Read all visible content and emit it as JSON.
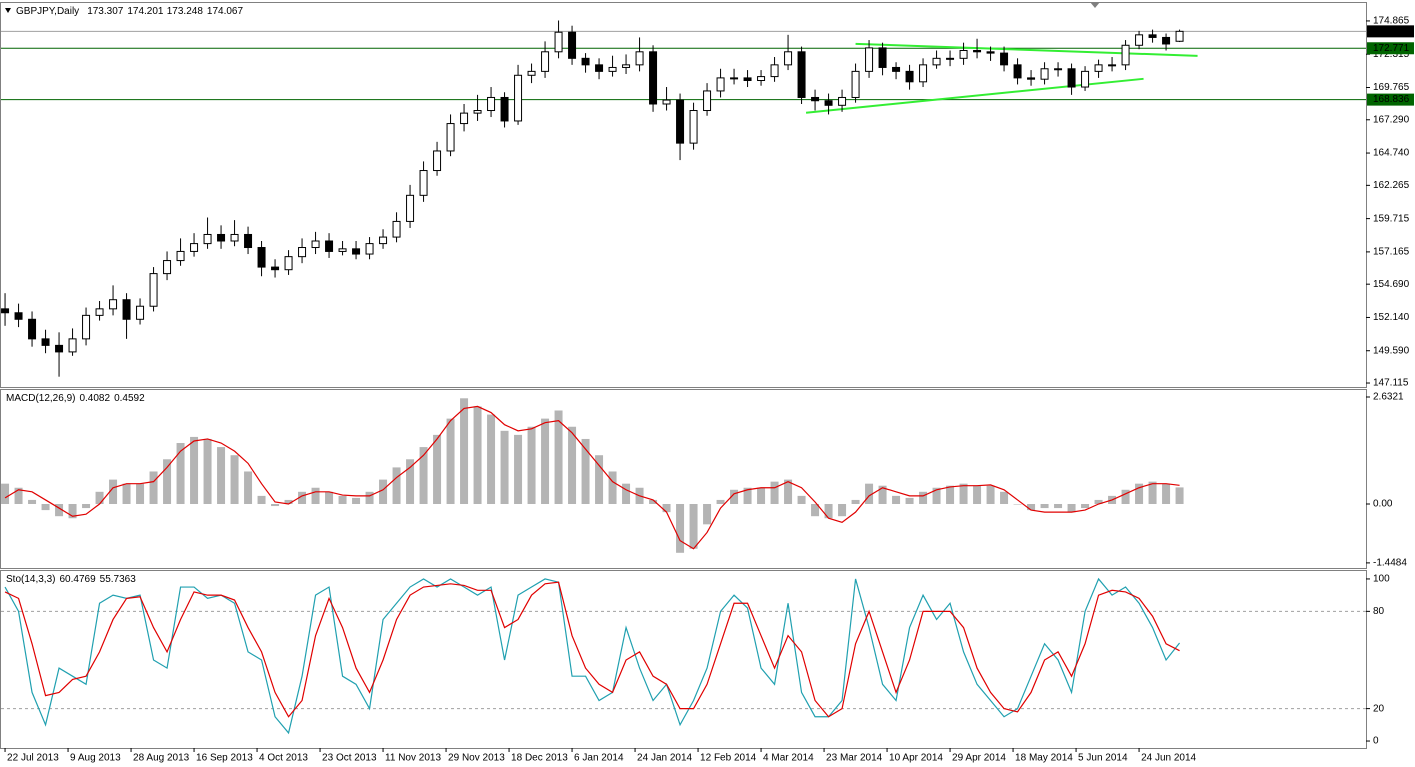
{
  "chart_data": [
    {
      "type": "candlestick",
      "title": "GBPJPY,Daily",
      "x": [
        0,
        3,
        6,
        9,
        12,
        15,
        18,
        21,
        24,
        27,
        30,
        33,
        36,
        39,
        42,
        45,
        48,
        51,
        54,
        57,
        60,
        63,
        66,
        69,
        72,
        75,
        78,
        81,
        84,
        87,
        90,
        93,
        96,
        99,
        102,
        105,
        108,
        111,
        114,
        117,
        120,
        123,
        126,
        129,
        132,
        135,
        138,
        141,
        144,
        147,
        150,
        153,
        156,
        159,
        162,
        165,
        168,
        171,
        174,
        177,
        180,
        183,
        186,
        189,
        192,
        195,
        198,
        201,
        204,
        207,
        210,
        213,
        216,
        219,
        222,
        225,
        228,
        231,
        234,
        237,
        240,
        243,
        246,
        249,
        252,
        255,
        258,
        261
      ],
      "open": [
        152.8,
        152.5,
        152,
        150.5,
        150,
        149.5,
        150.5,
        152.3,
        152.8,
        153.5,
        152,
        153,
        155.5,
        156.5,
        157.2,
        157.8,
        158.5,
        158,
        158.5,
        157.5,
        156,
        155.8,
        156.8,
        157.5,
        158,
        157.2,
        157.4,
        157,
        157.8,
        158.3,
        159.5,
        161.5,
        163.4,
        164.9,
        167,
        167.8,
        168,
        169,
        167.2,
        170.7,
        171,
        172.5,
        174,
        172,
        171.5,
        171,
        171.3,
        171.5,
        172.5,
        168.5,
        168.8,
        165.5,
        168,
        169.5,
        170.5,
        170.5,
        170.3,
        170.6,
        171.5,
        172.5,
        169,
        168.75,
        168.4,
        169,
        171,
        172.8,
        171.3,
        171,
        170.2,
        171.5,
        172,
        172,
        172.6,
        172.5,
        172.4,
        171.5,
        170.5,
        170.4,
        171.2,
        171.2,
        169.8,
        171,
        171.5,
        171.5,
        173,
        173.8,
        173.6,
        173.307
      ],
      "high": [
        154,
        153.2,
        152.6,
        151.2,
        151,
        151.3,
        152.9,
        153.4,
        154.6,
        154,
        153.6,
        156,
        157.2,
        158.2,
        158.6,
        159.8,
        159.2,
        159.6,
        159.1,
        158,
        156.6,
        157.3,
        158.2,
        158.7,
        158.6,
        158,
        158,
        158.3,
        158.9,
        160.2,
        162.3,
        164.1,
        165.6,
        167.7,
        168.5,
        169.2,
        169.8,
        169.4,
        171.5,
        171.6,
        173.3,
        174.9,
        174.5,
        172.4,
        172,
        172.2,
        172.3,
        173.6,
        173,
        169.8,
        169.3,
        168.6,
        170.1,
        171.2,
        171.2,
        171.1,
        171.1,
        172.1,
        173.8,
        172.9,
        169.6,
        169.3,
        169.6,
        171.6,
        173.4,
        173.2,
        171.7,
        171.5,
        172,
        172.6,
        172.6,
        173.2,
        173.5,
        172.9,
        172.9,
        172,
        171.1,
        171.7,
        171.7,
        171.6,
        171.4,
        171.9,
        172.1,
        173.4,
        174.1,
        174.2,
        173.9,
        174.201
      ],
      "low": [
        151.5,
        151.4,
        149.9,
        149.4,
        147.6,
        149.2,
        150,
        151.9,
        152.3,
        150.5,
        151.6,
        152.6,
        155,
        156.1,
        156.8,
        157.4,
        157.4,
        157.6,
        157,
        155.3,
        155.2,
        155.4,
        156.3,
        157,
        156.7,
        156.9,
        156.6,
        156.6,
        157.4,
        157.9,
        159,
        161,
        163,
        164.5,
        166.4,
        167.2,
        167.5,
        166.7,
        166.9,
        170.1,
        170.5,
        172,
        171.5,
        170.9,
        170.4,
        170.6,
        170.8,
        171,
        167.9,
        168,
        164.2,
        165,
        167.6,
        169,
        170,
        169.8,
        169.9,
        170.2,
        171.1,
        168.5,
        168,
        167.7,
        167.9,
        168.6,
        170.5,
        170.7,
        170.4,
        169.6,
        169.8,
        171.2,
        171.4,
        171.5,
        172,
        171.8,
        171,
        170,
        169.9,
        170,
        170.6,
        169.2,
        169.5,
        170.5,
        171,
        171.1,
        172.7,
        173.2,
        172.6,
        173.248
      ],
      "close": [
        152.5,
        152,
        150.5,
        150,
        149.5,
        150.5,
        152.3,
        152.8,
        153.5,
        152,
        153,
        155.5,
        156.5,
        157.2,
        157.8,
        158.5,
        158,
        158.5,
        157.5,
        156,
        155.8,
        156.8,
        157.5,
        158,
        157.2,
        157.4,
        157,
        157.8,
        158.3,
        159.5,
        161.5,
        163.4,
        164.9,
        167,
        167.8,
        168,
        169,
        167.2,
        170.7,
        171,
        172.5,
        174,
        172,
        171.5,
        171,
        171.3,
        171.5,
        172.5,
        168.5,
        168.8,
        165.5,
        168,
        169.5,
        170.5,
        170.5,
        170.3,
        170.6,
        171.5,
        172.5,
        169,
        168.75,
        168.4,
        169,
        171,
        172.8,
        171.3,
        171,
        170.2,
        171.5,
        172,
        172,
        172.6,
        172.5,
        172.4,
        171.5,
        170.5,
        170.4,
        171.2,
        171.2,
        169.8,
        171,
        171.5,
        171.5,
        173,
        173.8,
        173.6,
        173.1,
        174.067
      ],
      "xlim": [
        -0.9,
        302.43
      ],
      "xticks": [
        {
          "value": 0,
          "label": "22 Jul 2013"
        },
        {
          "value": 14,
          "label": "9 Aug 2013"
        },
        {
          "value": 28,
          "label": "28 Aug 2013"
        },
        {
          "value": 42,
          "label": "16 Sep 2013"
        },
        {
          "value": 56,
          "label": "4 Oct 2013"
        },
        {
          "value": 70,
          "label": "23 Oct 2013"
        },
        {
          "value": 84,
          "label": "11 Nov 2013"
        },
        {
          "value": 98,
          "label": "29 Nov 2013"
        },
        {
          "value": 112,
          "label": "18 Dec 2013"
        },
        {
          "value": 126,
          "label": "6 Jan 2014"
        },
        {
          "value": 140,
          "label": "24 Jan 2014"
        },
        {
          "value": 154,
          "label": "12 Feb 2014"
        },
        {
          "value": 168,
          "label": "4 Mar 2014"
        },
        {
          "value": 182,
          "label": "23 Mar 2014"
        },
        {
          "value": 196,
          "label": "10 Apr 2014"
        },
        {
          "value": 210,
          "label": "29 Apr 2014"
        },
        {
          "value": 224,
          "label": "18 May 2014"
        },
        {
          "value": 238,
          "label": "5 Jun 2014"
        },
        {
          "value": 252,
          "label": "24 Jun 2014"
        }
      ],
      "ylim": [
        146.81,
        176.24
      ],
      "yticks": [
        147.115,
        {
          "value": 149.59,
          "label": "149.590"
        },
        {
          "value": 152.14,
          "label": "152.140"
        },
        {
          "value": 154.69,
          "label": "154.690"
        },
        157.165,
        159.715,
        162.265,
        {
          "value": 164.74,
          "label": "164.740"
        },
        {
          "value": 167.29,
          "label": "167.290"
        },
        169.765,
        172.315,
        174.865
      ],
      "levels": [
        {
          "value": 174.067,
          "color": "#a0a0a0",
          "label_color": "#000000"
        },
        {
          "value": 172.771,
          "color": "#006400",
          "label_color": "#006400"
        },
        {
          "value": 168.836,
          "color": "#006400",
          "label_color": "#006400"
        }
      ],
      "trendlines": [
        {
          "x": [
            189,
            265
          ],
          "y": [
            173.11,
            172.19
          ],
          "color": "#33ee33"
        },
        {
          "x": [
            178,
            253
          ],
          "y": [
            167.83,
            170.43
          ],
          "color": "#33ee33"
        }
      ],
      "bull_color": "#ffffff",
      "bear_color": "#000000"
    },
    {
      "type": "macd",
      "title": "MACD(12,26,9)",
      "histogram": {
        "color": "#b4b4b4",
        "values": [
          0.5,
          0.4,
          0.1,
          -0.15,
          -0.3,
          -0.35,
          -0.1,
          0.3,
          0.6,
          0.5,
          0.5,
          0.8,
          1.1,
          1.5,
          1.65,
          1.6,
          1.4,
          1.2,
          0.8,
          0.2,
          -0.05,
          0.1,
          0.3,
          0.4,
          0.3,
          0.2,
          0.15,
          0.3,
          0.6,
          0.9,
          1.1,
          1.4,
          1.7,
          2.1,
          2.6,
          2.4,
          2.2,
          1.8,
          1.7,
          1.9,
          2.1,
          2.3,
          1.9,
          1.6,
          1.2,
          0.8,
          0.5,
          0.4,
          0.1,
          -0.2,
          -1.2,
          -1.1,
          -0.5,
          0.1,
          0.35,
          0.4,
          0.4,
          0.55,
          0.6,
          0.2,
          -0.3,
          -0.35,
          -0.3,
          0.1,
          0.5,
          0.45,
          0.2,
          0.15,
          0.3,
          0.4,
          0.45,
          0.5,
          0.45,
          0.45,
          0.3,
          0,
          -0.15,
          -0.1,
          -0.1,
          -0.2,
          -0.1,
          0.1,
          0.2,
          0.35,
          0.5,
          0.55,
          0.5,
          0.4082
        ]
      },
      "signal": {
        "color": "#e00000",
        "values": [
          0.15,
          0.35,
          0.3,
          0.1,
          -0.1,
          -0.3,
          -0.25,
          0,
          0.4,
          0.5,
          0.5,
          0.55,
          0.9,
          1.3,
          1.55,
          1.6,
          1.5,
          1.3,
          1.0,
          0.5,
          0.05,
          0,
          0.2,
          0.3,
          0.3,
          0.22,
          0.2,
          0.2,
          0.35,
          0.65,
          0.9,
          1.2,
          1.6,
          2.05,
          2.35,
          2.4,
          2.25,
          1.95,
          1.8,
          1.85,
          2.0,
          2.05,
          1.75,
          1.35,
          0.95,
          0.55,
          0.35,
          0.2,
          0.1,
          -0.2,
          -0.9,
          -1.1,
          -0.7,
          -0.1,
          0.25,
          0.35,
          0.4,
          0.4,
          0.55,
          0.4,
          0.05,
          -0.35,
          -0.45,
          -0.2,
          0.2,
          0.4,
          0.3,
          0.2,
          0.2,
          0.35,
          0.42,
          0.45,
          0.45,
          0.47,
          0.35,
          0.1,
          -0.15,
          -0.2,
          -0.2,
          -0.2,
          -0.15,
          0,
          0.1,
          0.25,
          0.4,
          0.5,
          0.5,
          0.4592
        ]
      },
      "ylim": [
        -1.574,
        2.804
      ],
      "yticks": [
        -1.4484,
        {
          "value": 0,
          "label": "0.00"
        },
        2.6321
      ]
    },
    {
      "type": "stochastic",
      "title": "Sto(14,3,3)",
      "main": {
        "color": "#20a0b0",
        "values": [
          95,
          80,
          30,
          10,
          45,
          40,
          35,
          85,
          90,
          88,
          90,
          50,
          45,
          95,
          95,
          88,
          90,
          85,
          55,
          50,
          15,
          5,
          40,
          90,
          95,
          40,
          35,
          20,
          75,
          85,
          95,
          100,
          95,
          100,
          95,
          90,
          95,
          50,
          90,
          95,
          100,
          98,
          40,
          40,
          25,
          30,
          70,
          45,
          25,
          35,
          10,
          25,
          45,
          80,
          90,
          82,
          45,
          35,
          85,
          30,
          15,
          15,
          25,
          100,
          70,
          35,
          25,
          70,
          90,
          75,
          85,
          55,
          35,
          25,
          15,
          20,
          40,
          60,
          50,
          30,
          80,
          100,
          90,
          95,
          85,
          70,
          50,
          60.4769
        ]
      },
      "signal": {
        "color": "#e00000",
        "values": [
          92,
          88,
          60,
          28,
          30,
          38,
          40,
          55,
          75,
          88,
          89,
          70,
          55,
          75,
          92,
          90,
          90,
          87,
          70,
          55,
          30,
          15,
          25,
          65,
          88,
          70,
          45,
          30,
          50,
          75,
          90,
          95,
          96,
          97,
          96,
          93,
          93,
          70,
          75,
          90,
          97,
          98,
          65,
          45,
          35,
          30,
          50,
          55,
          40,
          35,
          20,
          20,
          35,
          60,
          85,
          85,
          65,
          45,
          65,
          55,
          25,
          15,
          20,
          60,
          80,
          55,
          30,
          50,
          80,
          80,
          80,
          70,
          45,
          30,
          20,
          18,
          30,
          50,
          55,
          40,
          60,
          90,
          93,
          92,
          88,
          77,
          60,
          55.7363
        ]
      },
      "ylim": [
        -4.3,
        104.9
      ],
      "yticks": [
        0,
        20,
        80,
        100
      ],
      "levels": [
        20,
        80
      ]
    }
  ]
}
